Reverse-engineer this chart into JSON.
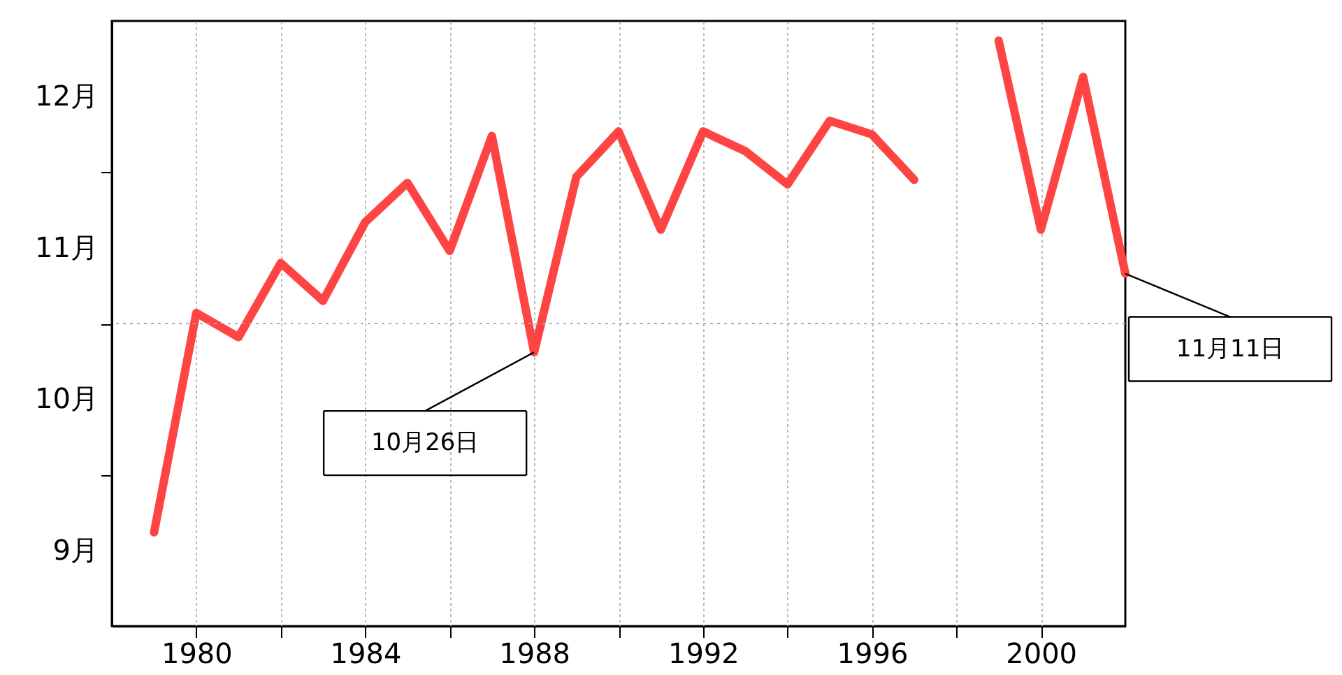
{
  "chart_data": {
    "type": "line",
    "x": [
      1979,
      1980,
      1981,
      1982,
      1983,
      1984,
      1985,
      1986,
      1987,
      1988,
      1989,
      1990,
      1991,
      1992,
      1993,
      1994,
      1995,
      1996,
      1997,
      1998,
      1999,
      2000,
      2001,
      2002
    ],
    "series": [
      {
        "color": "#ff4444",
        "values": [
          9.62,
          11.07,
          10.91,
          11.4,
          11.15,
          11.67,
          11.93,
          11.48,
          12.24,
          10.81,
          11.97,
          12.27,
          11.62,
          12.27,
          12.14,
          11.92,
          12.34,
          12.25,
          11.95,
          null,
          12.87,
          11.62,
          12.63,
          11.33
        ]
      }
    ],
    "xlim": [
      1978,
      2002
    ],
    "xticks": [
      1980,
      {
        "value": 1982,
        "label": null
      },
      1984,
      {
        "value": 1986,
        "label": null
      },
      1988,
      {
        "value": 1990,
        "label": null
      },
      1992,
      {
        "value": 1994,
        "label": null
      },
      1996,
      {
        "value": 1998,
        "label": null
      },
      2000
    ],
    "ylim": [
      9,
      13
    ],
    "yticks": [
      {
        "value": 9.5,
        "label": "9月"
      },
      {
        "value": 10,
        "label": null
      },
      {
        "value": 10.5,
        "label": "10月"
      },
      {
        "value": 11,
        "label": null
      },
      {
        "value": 11.5,
        "label": "11月"
      },
      {
        "value": 12,
        "label": null
      },
      {
        "value": 12.5,
        "label": "12月"
      }
    ],
    "grid": "x",
    "ref_lines": [
      {
        "axis": "y",
        "value": 11,
        "line_style": "dotted",
        "color": "#aaaaaa"
      }
    ],
    "annotations": [
      {
        "text": "10月26日",
        "x": 1988,
        "y": 10.81
      },
      {
        "text": "11月11日",
        "x": 2002,
        "y": 11.33
      }
    ],
    "marker": "none",
    "line_style": "solid",
    "legend": false
  }
}
